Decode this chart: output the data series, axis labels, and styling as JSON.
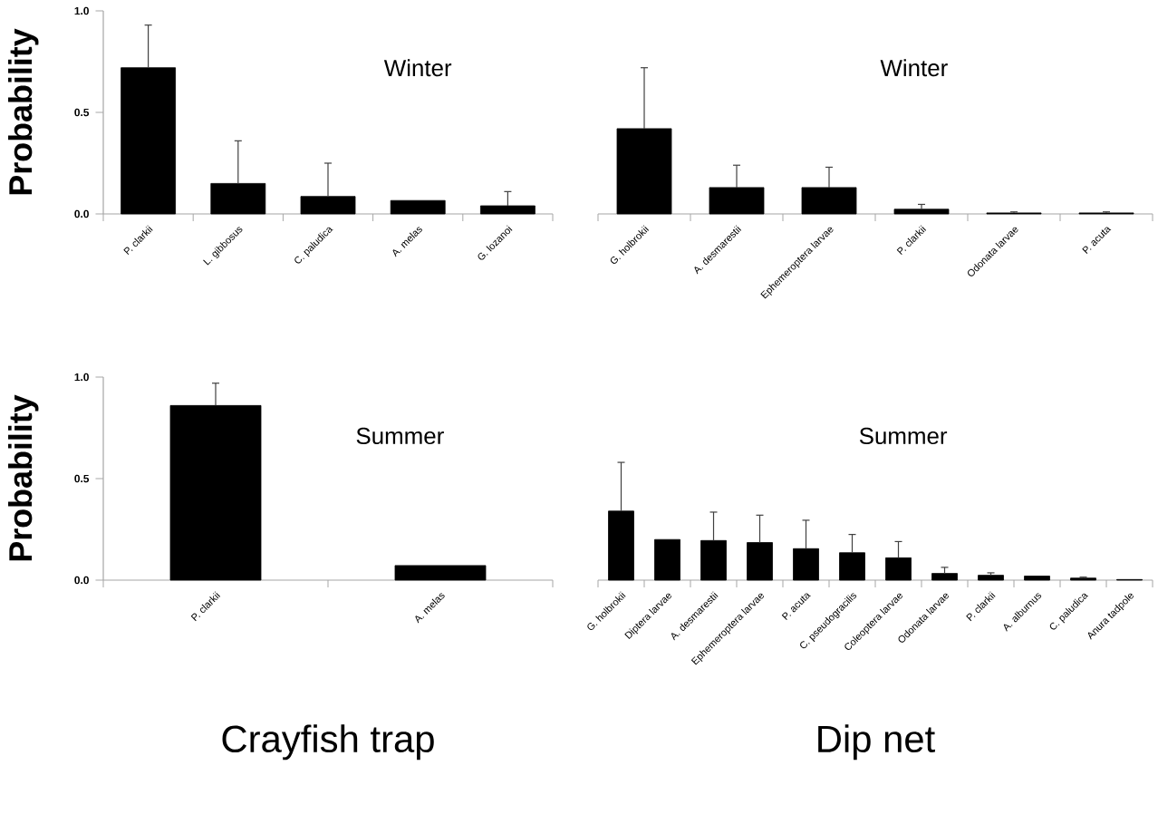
{
  "chart_data": [
    {
      "type": "bar",
      "title": "Winter",
      "ylabel": "Probability",
      "color": "#000000",
      "ylim": [
        0,
        1
      ],
      "yticks": [
        {
          "value": 0,
          "label": "0.0"
        },
        {
          "value": 0.5,
          "label": "0.5"
        },
        {
          "value": 1,
          "label": "1.0"
        }
      ],
      "categories": [
        "P. clarkii",
        "L. gibbosus",
        "C. paludica",
        "A. melas",
        "G. lozanoi"
      ],
      "values": [
        0.72,
        0.15,
        0.086,
        0.066,
        0.04
      ],
      "errors": [
        [
          0.72,
          0.93
        ],
        [
          0.15,
          0.36
        ],
        [
          0.086,
          0.25
        ],
        null,
        [
          0.04,
          0.11
        ]
      ]
    },
    {
      "type": "bar",
      "title": "Winter",
      "color": "#000000",
      "ylim": [
        0,
        1
      ],
      "tick_labels": "x",
      "categories": [
        "G. holbrokii",
        "A. desmarestii",
        "Ephemeroptera larvae",
        "P. clarkii",
        "Odonata larvae",
        "P. acuta"
      ],
      "values": [
        0.42,
        0.13,
        0.13,
        0.023,
        0.005,
        0.005
      ],
      "errors": [
        [
          0.42,
          0.72
        ],
        [
          0.13,
          0.24
        ],
        [
          0.13,
          0.23
        ],
        [
          0.023,
          0.047
        ],
        [
          0.005,
          0.01
        ],
        [
          0.005,
          0.01
        ]
      ]
    },
    {
      "type": "bar",
      "title": "Summer",
      "ylabel": "Probability",
      "xlabel": "Crayfish trap",
      "color": "#000000",
      "ylim": [
        0,
        1
      ],
      "yticks": [
        {
          "value": 0,
          "label": "0.0"
        },
        {
          "value": 0.5,
          "label": "0.5"
        },
        {
          "value": 1,
          "label": "1.0"
        }
      ],
      "categories": [
        "P. clarkii",
        "A. melas"
      ],
      "values": [
        0.86,
        0.072
      ],
      "errors": [
        [
          0.86,
          0.97
        ],
        null
      ]
    },
    {
      "type": "bar",
      "title": "Summer",
      "xlabel": "Dip net",
      "color": "#000000",
      "ylim": [
        0,
        1
      ],
      "tick_labels": "x",
      "categories": [
        "G. holbrokii",
        "Diptera larvae",
        "A. desmarestii",
        "Ephemeroptera larvae",
        "P. acuta",
        "C. pseudogracilis",
        "Coleoptera larvae",
        "Odonata larvae",
        "P. clarkii",
        "A. alburnus",
        "C. paludica",
        "Anura tadpole"
      ],
      "values": [
        0.34,
        0.2,
        0.195,
        0.185,
        0.155,
        0.135,
        0.11,
        0.033,
        0.024,
        0.02,
        0.01,
        0.003
      ],
      "errors": [
        [
          0.34,
          0.58
        ],
        null,
        [
          0.195,
          0.335
        ],
        [
          0.185,
          0.32
        ],
        [
          0.155,
          0.295
        ],
        [
          0.135,
          0.225
        ],
        [
          0.11,
          0.19
        ],
        [
          0.033,
          0.063
        ],
        [
          0.024,
          0.036
        ],
        null,
        [
          0.01,
          0.015
        ],
        null
      ]
    }
  ]
}
